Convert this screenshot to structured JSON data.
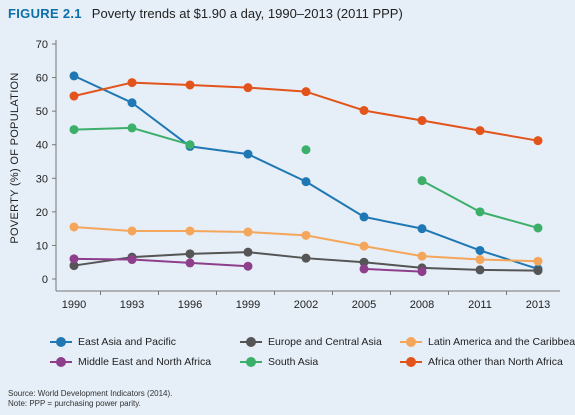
{
  "figure": {
    "label": "FIGURE 2.1",
    "title": "Poverty trends at $1.90 a day, 1990–2013 (2011 PPP)"
  },
  "source_note": {
    "line1": "Source: World Development Indicators (2014).",
    "line2": "Note: PPP = purchasing power parity."
  },
  "chart_data": {
    "type": "line",
    "title": "Poverty trends at $1.90 a day, 1990–2013 (2011 PPP)",
    "xlabel": "",
    "ylabel": "POVERTY (%) OF POPULATION",
    "x": [
      1990,
      1993,
      1996,
      1999,
      2002,
      2005,
      2008,
      2011,
      2013
    ],
    "ylim": [
      0,
      70
    ],
    "yticks": [
      0,
      10,
      20,
      30,
      40,
      50,
      60,
      70
    ],
    "grid": false,
    "legend": "bottom",
    "series": [
      {
        "name": "East Asia and Pacific",
        "color": "#1f78b4",
        "values": [
          60.5,
          52.5,
          39.5,
          37.2,
          29.0,
          18.5,
          15.0,
          8.5,
          3.0
        ]
      },
      {
        "name": "Europe and Central Asia",
        "color": "#555555",
        "values": [
          4.0,
          6.5,
          7.5,
          8.0,
          6.2,
          5.0,
          3.3,
          2.7,
          2.5
        ]
      },
      {
        "name": "Latin America and the Caribbean",
        "color": "#f4a65b",
        "values": [
          15.5,
          14.3,
          14.3,
          14.0,
          13.0,
          9.8,
          6.8,
          5.8,
          5.3
        ]
      },
      {
        "name": "Middle East and North Africa",
        "color": "#8e3f8c",
        "values": [
          6.0,
          5.8,
          4.8,
          3.8,
          null,
          3.0,
          2.2,
          null,
          null
        ]
      },
      {
        "name": "South Asia",
        "color": "#3cb06a",
        "values": [
          44.5,
          45.0,
          40.0,
          null,
          38.5,
          null,
          29.3,
          20.0,
          15.2
        ]
      },
      {
        "name": "Africa other than North Africa",
        "color": "#e2541b",
        "values": [
          54.5,
          58.5,
          57.8,
          57.0,
          55.8,
          50.2,
          47.2,
          44.2,
          41.2
        ]
      }
    ]
  }
}
